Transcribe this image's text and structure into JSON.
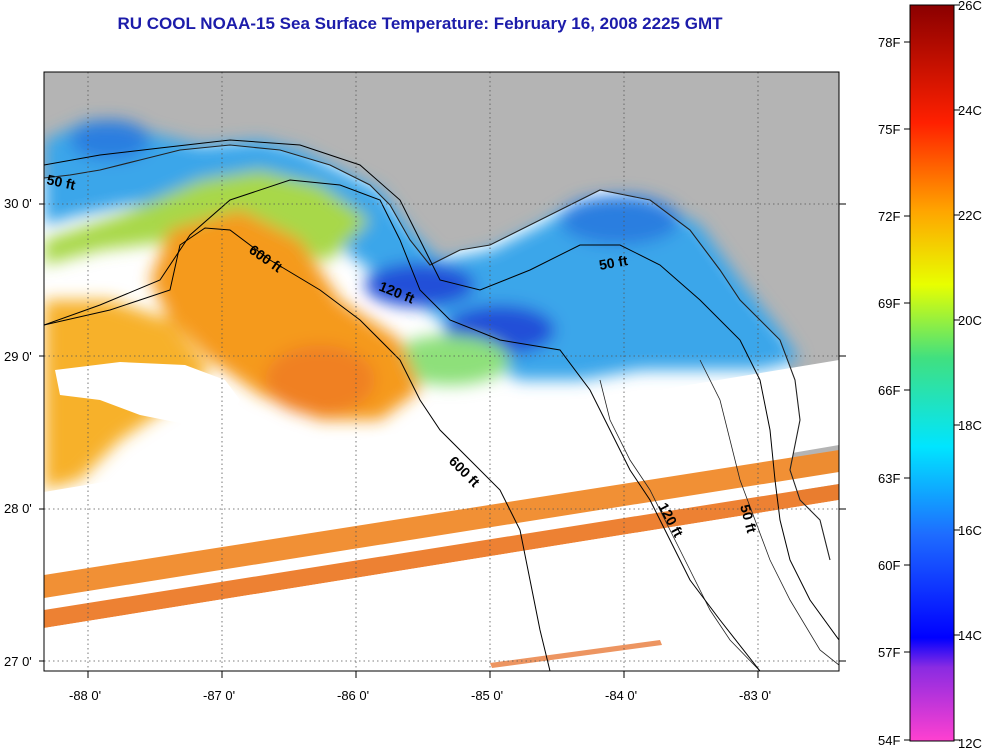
{
  "title": "RU COOL  NOAA-15  Sea Surface Temperature:  February 16, 2008 2225 GMT",
  "map": {
    "lat_ticks": [
      "30 0'",
      "29 0'",
      "28 0'",
      "27 0'"
    ],
    "lon_ticks": [
      "-88 0'",
      "-87 0'",
      "-86 0'",
      "-85 0'",
      "-84 0'",
      "-83 0'"
    ],
    "contour_labels": [
      "50 ft",
      "600 ft",
      "120 ft",
      "50 ft",
      "600 ft",
      "120 ft",
      "50 ft"
    ],
    "colors": {
      "land": "#b4b4b4",
      "swath_gap": "#ffffff",
      "warm": "#f59a1f",
      "cool": "#3aa6ea",
      "cold": "#2050d8",
      "mild": "#a8d84a"
    }
  },
  "colorbar": {
    "f_labels": [
      "78F",
      "75F",
      "72F",
      "69F",
      "66F",
      "63F",
      "60F",
      "57F",
      "54F"
    ],
    "c_labels": [
      "26C",
      "24C",
      "22C",
      "20C",
      "18C",
      "16C",
      "14C",
      "12C"
    ],
    "range_c": [
      12,
      26
    ]
  }
}
